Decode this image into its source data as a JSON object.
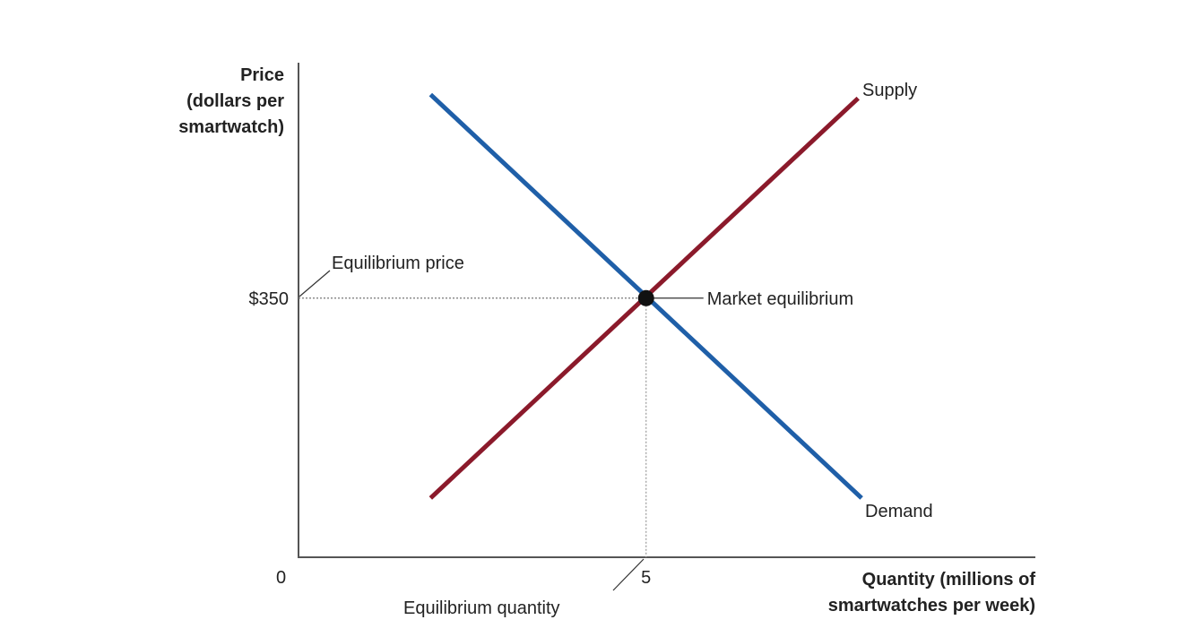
{
  "chart_data": {
    "type": "line",
    "title": "",
    "ylabel_lines": [
      "Price",
      "(dollars per",
      "smartwatch)"
    ],
    "xlabel_lines": [
      "Quantity (millions of",
      "smartwatches per week)"
    ],
    "origin_label": "0",
    "xlim": [
      0,
      10.6
    ],
    "ylim": [
      0,
      668
    ],
    "grid": false,
    "x_ticks": [
      {
        "value": 5,
        "label": "5"
      }
    ],
    "y_ticks": [
      {
        "value": 350,
        "label": "$350"
      }
    ],
    "series": [
      {
        "name": "Supply",
        "color": "#8b1a2b",
        "points": [
          [
            1.9,
            80
          ],
          [
            8.05,
            620
          ]
        ]
      },
      {
        "name": "Demand",
        "color": "#1f5fa8",
        "points": [
          [
            1.9,
            625
          ],
          [
            8.1,
            80
          ]
        ]
      }
    ],
    "equilibrium": {
      "x": 5,
      "y": 350,
      "label": "Market equilibrium"
    },
    "annotations": {
      "equilibrium_price": "Equilibrium price",
      "equilibrium_quantity": "Equilibrium quantity"
    }
  }
}
